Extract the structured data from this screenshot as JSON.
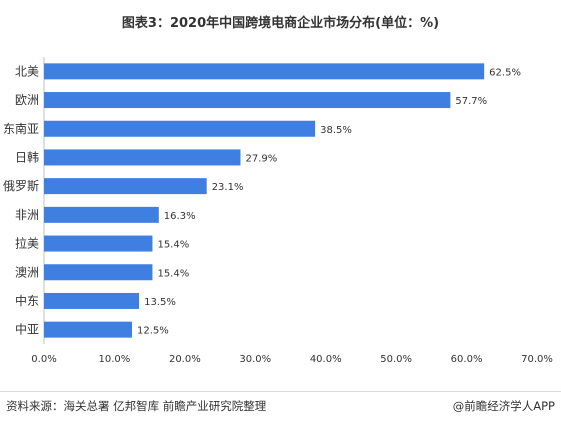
{
  "title": "图表3：2020年中国跨境电商企业市场分布(单位：%)",
  "footer": {
    "source": "资料来源：海关总署 亿邦智库 前瞻产业研究院整理",
    "brand": "@前瞻经济学人APP"
  },
  "chart_data": {
    "type": "bar",
    "orientation": "horizontal",
    "categories": [
      "北美",
      "欧洲",
      "东南亚",
      "日韩",
      "俄罗斯",
      "非洲",
      "拉美",
      "澳洲",
      "中东",
      "中亚"
    ],
    "values": [
      62.5,
      57.7,
      38.5,
      27.9,
      23.1,
      16.3,
      15.4,
      15.4,
      13.5,
      12.5
    ],
    "value_labels": [
      "62.5%",
      "57.7%",
      "38.5%",
      "27.9%",
      "23.1%",
      "16.3%",
      "15.4%",
      "15.4%",
      "13.5%",
      "12.5%"
    ],
    "xlim": [
      0,
      70
    ],
    "xticks": [
      0,
      10,
      20,
      30,
      40,
      50,
      60,
      70
    ],
    "xtick_labels": [
      "0.0%",
      "10.0%",
      "20.0%",
      "30.0%",
      "40.0%",
      "50.0%",
      "60.0%",
      "70.0%"
    ],
    "grid": false,
    "bar_color": "#3f7fe1"
  }
}
